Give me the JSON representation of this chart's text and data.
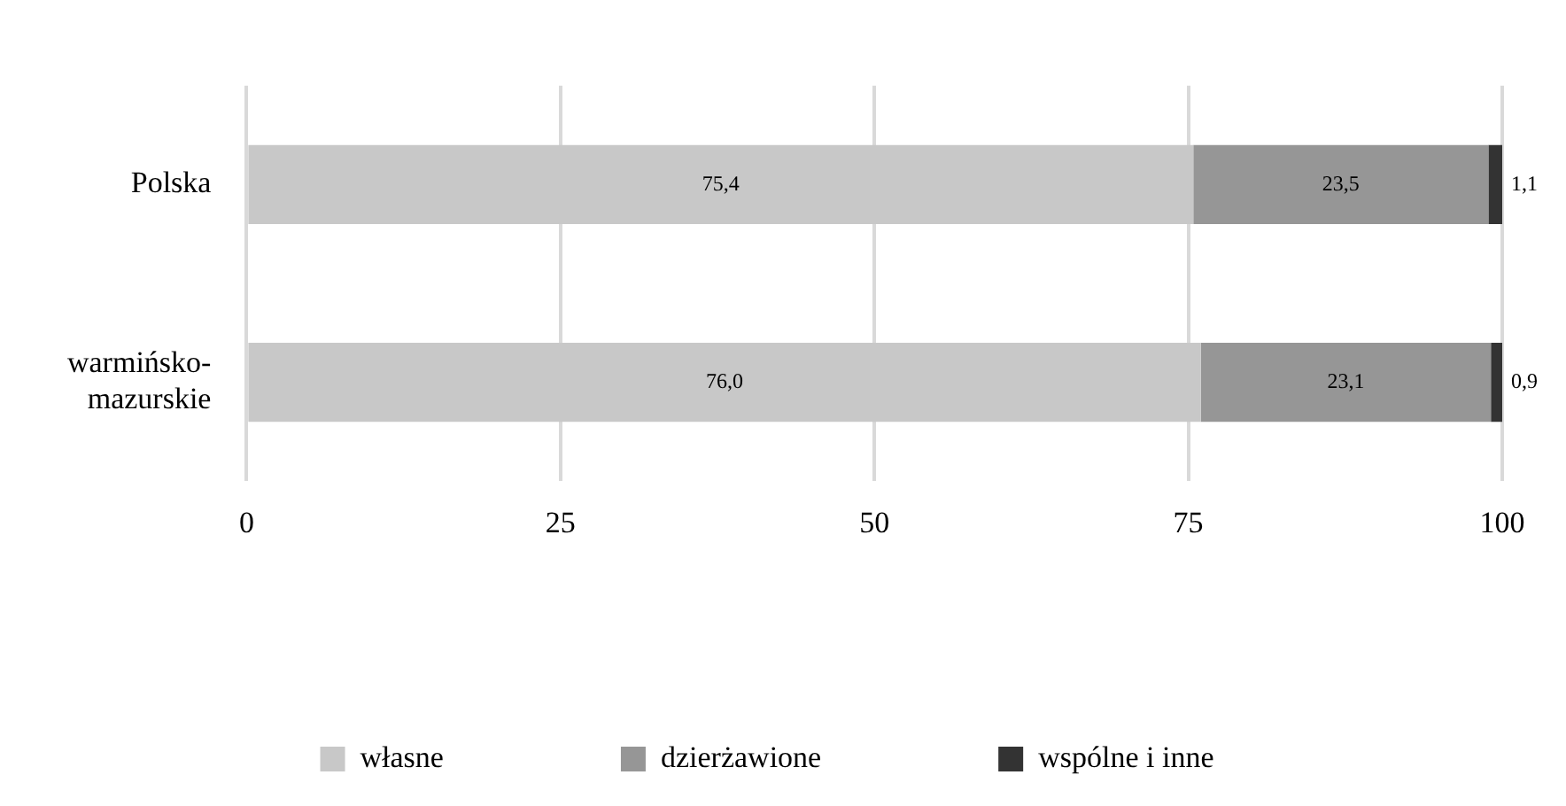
{
  "chart_data": {
    "type": "bar",
    "orientation": "horizontal",
    "stacked": true,
    "categories": [
      "Polska",
      "warmińsko-mazurskie"
    ],
    "series": [
      {
        "name": "własne",
        "color": "#c8c8c8",
        "values": [
          75.4,
          76.0
        ],
        "value_labels": [
          "75,4",
          "76,0"
        ]
      },
      {
        "name": "dzierżawione",
        "color": "#969696",
        "values": [
          23.5,
          23.1
        ],
        "value_labels": [
          "23,5",
          "23,1"
        ]
      },
      {
        "name": "wspólne i inne",
        "color": "#333333",
        "values": [
          1.1,
          0.9
        ],
        "value_labels": [
          "1,1",
          "0,9"
        ]
      }
    ],
    "xlim": [
      0,
      100
    ],
    "xticks": [
      0,
      25,
      50,
      75,
      100
    ],
    "grid": "x",
    "legend": "bottom"
  }
}
